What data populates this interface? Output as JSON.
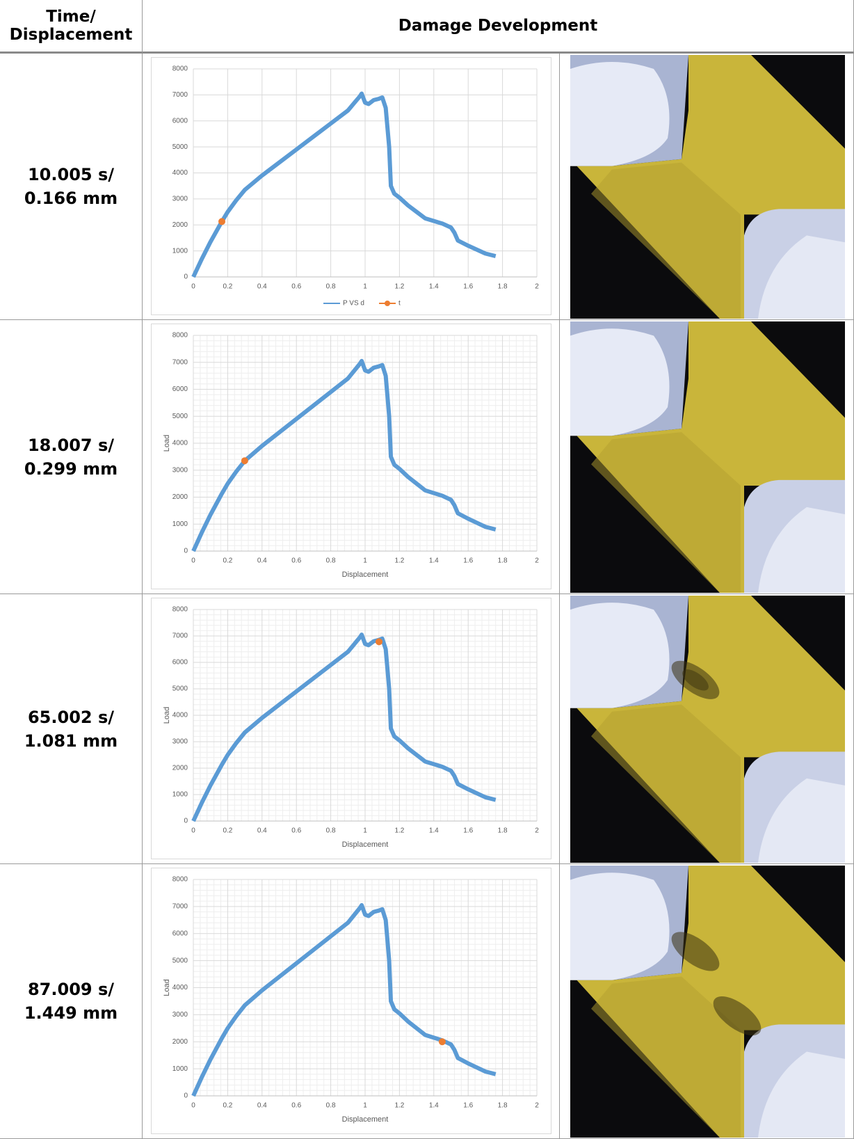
{
  "table": {
    "headers": [
      "Time/ Displacement",
      "Damage Development"
    ],
    "rows": [
      {
        "time": "10.005 s/",
        "displacement": "0.166 mm",
        "chart": {
          "type": "line",
          "legend": true,
          "minor_grid": false,
          "xlim": [
            0,
            2
          ],
          "xticks": [
            0,
            0.2,
            0.4,
            0.6,
            0.8,
            1,
            1.2,
            1.4,
            1.6,
            1.8,
            2
          ],
          "ylim": [
            0,
            8000
          ],
          "yticks": [
            0,
            1000,
            2000,
            3000,
            4000,
            5000,
            6000,
            7000,
            8000
          ],
          "series": [
            {
              "name": "P VS d",
              "color": "#5b9bd5",
              "x": [
                0,
                0.05,
                0.1,
                0.166,
                0.2,
                0.25,
                0.3,
                0.4,
                0.5,
                0.6,
                0.7,
                0.8,
                0.9,
                0.97,
                0.98,
                1.0,
                1.02,
                1.05,
                1.08,
                1.1,
                1.12,
                1.14,
                1.15,
                1.17,
                1.2,
                1.25,
                1.3,
                1.35,
                1.4,
                1.45,
                1.5,
                1.52,
                1.54,
                1.6,
                1.65,
                1.7,
                1.76
              ],
              "values": [
                0,
                700,
                1350,
                2130,
                2500,
                2950,
                3350,
                3900,
                4400,
                4900,
                5400,
                5900,
                6400,
                6950,
                7050,
                6700,
                6650,
                6800,
                6850,
                6900,
                6500,
                5000,
                3500,
                3200,
                3050,
                2750,
                2500,
                2250,
                2150,
                2050,
                1900,
                1700,
                1400,
                1200,
                1050,
                900,
                800
              ]
            },
            {
              "name": "t",
              "color": "#ed7d31",
              "x": [
                0.166
              ],
              "values": [
                2130
              ]
            }
          ]
        }
      },
      {
        "time": "18.007 s/",
        "displacement": "0.299 mm",
        "chart": {
          "type": "line",
          "legend": false,
          "minor_grid": true,
          "xlabel": "Displacement",
          "ylabel": "Load",
          "xlim": [
            0,
            2
          ],
          "xticks": [
            0,
            0.2,
            0.4,
            0.6,
            0.8,
            1,
            1.2,
            1.4,
            1.6,
            1.8,
            2
          ],
          "ylim": [
            0,
            8000
          ],
          "yticks": [
            0,
            1000,
            2000,
            3000,
            4000,
            5000,
            6000,
            7000,
            8000
          ],
          "series": [
            {
              "color": "#5b9bd5",
              "x": [
                0,
                0.05,
                0.1,
                0.166,
                0.2,
                0.25,
                0.3,
                0.4,
                0.5,
                0.6,
                0.7,
                0.8,
                0.9,
                0.97,
                0.98,
                1.0,
                1.02,
                1.05,
                1.08,
                1.1,
                1.12,
                1.14,
                1.15,
                1.17,
                1.2,
                1.25,
                1.3,
                1.35,
                1.4,
                1.45,
                1.5,
                1.52,
                1.54,
                1.6,
                1.65,
                1.7,
                1.76
              ],
              "values": [
                0,
                700,
                1350,
                2130,
                2500,
                2950,
                3350,
                3900,
                4400,
                4900,
                5400,
                5900,
                6400,
                6950,
                7050,
                6700,
                6650,
                6800,
                6850,
                6900,
                6500,
                5000,
                3500,
                3200,
                3050,
                2750,
                2500,
                2250,
                2150,
                2050,
                1900,
                1700,
                1400,
                1200,
                1050,
                900,
                800
              ]
            },
            {
              "color": "#ed7d31",
              "x": [
                0.299
              ],
              "values": [
                3350
              ]
            }
          ]
        }
      },
      {
        "time": "65.002 s/",
        "displacement": "1.081 mm",
        "chart": {
          "type": "line",
          "legend": false,
          "minor_grid": true,
          "xlabel": "Displacement",
          "ylabel": "Load",
          "xlim": [
            0,
            2
          ],
          "xticks": [
            0,
            0.2,
            0.4,
            0.6,
            0.8,
            1,
            1.2,
            1.4,
            1.6,
            1.8,
            2
          ],
          "ylim": [
            0,
            8000
          ],
          "yticks": [
            0,
            1000,
            2000,
            3000,
            4000,
            5000,
            6000,
            7000,
            8000
          ],
          "series": [
            {
              "color": "#5b9bd5",
              "x": [
                0,
                0.05,
                0.1,
                0.166,
                0.2,
                0.25,
                0.3,
                0.4,
                0.5,
                0.6,
                0.7,
                0.8,
                0.9,
                0.97,
                0.98,
                1.0,
                1.02,
                1.05,
                1.08,
                1.1,
                1.12,
                1.14,
                1.15,
                1.17,
                1.2,
                1.25,
                1.3,
                1.35,
                1.4,
                1.45,
                1.5,
                1.52,
                1.54,
                1.6,
                1.65,
                1.7,
                1.76
              ],
              "values": [
                0,
                700,
                1350,
                2130,
                2500,
                2950,
                3350,
                3900,
                4400,
                4900,
                5400,
                5900,
                6400,
                6950,
                7050,
                6700,
                6650,
                6800,
                6850,
                6900,
                6500,
                5000,
                3500,
                3200,
                3050,
                2750,
                2500,
                2250,
                2150,
                2050,
                1900,
                1700,
                1400,
                1200,
                1050,
                900,
                800
              ]
            },
            {
              "color": "#ed7d31",
              "x": [
                1.081
              ],
              "values": [
                6780
              ]
            }
          ]
        }
      },
      {
        "time": "87.009 s/",
        "displacement": "1.449 mm",
        "chart": {
          "type": "line",
          "legend": false,
          "minor_grid": true,
          "xlabel": "Displacement",
          "ylabel": "Load",
          "xlim": [
            0,
            2
          ],
          "xticks": [
            0,
            0.2,
            0.4,
            0.6,
            0.8,
            1,
            1.2,
            1.4,
            1.6,
            1.8,
            2
          ],
          "ylim": [
            0,
            8000
          ],
          "yticks": [
            0,
            1000,
            2000,
            3000,
            4000,
            5000,
            6000,
            7000,
            8000
          ],
          "series": [
            {
              "color": "#5b9bd5",
              "x": [
                0,
                0.05,
                0.1,
                0.166,
                0.2,
                0.25,
                0.3,
                0.4,
                0.5,
                0.6,
                0.7,
                0.8,
                0.9,
                0.97,
                0.98,
                1.0,
                1.02,
                1.05,
                1.08,
                1.1,
                1.12,
                1.14,
                1.15,
                1.17,
                1.2,
                1.25,
                1.3,
                1.35,
                1.4,
                1.45,
                1.5,
                1.52,
                1.54,
                1.6,
                1.65,
                1.7,
                1.76
              ],
              "values": [
                0,
                700,
                1350,
                2130,
                2500,
                2950,
                3350,
                3900,
                4400,
                4900,
                5400,
                5900,
                6400,
                6950,
                7050,
                6700,
                6650,
                6800,
                6850,
                6900,
                6500,
                5000,
                3500,
                3200,
                3050,
                2750,
                2500,
                2250,
                2150,
                2050,
                1900,
                1700,
                1400,
                1200,
                1050,
                900,
                800
              ]
            },
            {
              "color": "#ed7d31",
              "x": [
                1.449
              ],
              "values": [
                2000
              ]
            }
          ]
        }
      }
    ]
  }
}
